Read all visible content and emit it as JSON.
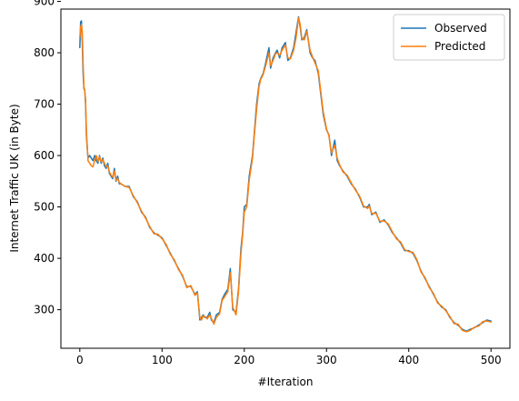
{
  "chart_data": {
    "type": "line",
    "title": "",
    "xlabel": "#Iteration",
    "ylabel": "Internet Traffic UK (in Byte)",
    "xlim": [
      -23,
      523
    ],
    "ylim": [
      225,
      885
    ],
    "xticks": [
      0,
      100,
      200,
      300,
      400,
      500
    ],
    "yticks": [
      300,
      400,
      500,
      600,
      700,
      800,
      900
    ],
    "grid": false,
    "legend_position": "top-right",
    "series": [
      {
        "name": "Observed",
        "color": "#1f77b4",
        "x": [
          0,
          1,
          2,
          3,
          4,
          5,
          6,
          7,
          8,
          9,
          10,
          12,
          14,
          16,
          18,
          20,
          22,
          24,
          26,
          28,
          30,
          32,
          34,
          36,
          38,
          40,
          42,
          44,
          46,
          48,
          50,
          55,
          60,
          65,
          70,
          75,
          80,
          85,
          90,
          95,
          100,
          105,
          110,
          115,
          120,
          125,
          130,
          135,
          140,
          143,
          146,
          148,
          150,
          152,
          155,
          158,
          160,
          163,
          166,
          170,
          173,
          176,
          180,
          183,
          186,
          190,
          193,
          196,
          198,
          200,
          203,
          206,
          210,
          212,
          215,
          218,
          220,
          223,
          226,
          230,
          232,
          235,
          238,
          240,
          243,
          246,
          250,
          253,
          256,
          260,
          263,
          266,
          268,
          270,
          273,
          276,
          280,
          283,
          286,
          290,
          293,
          296,
          300,
          303,
          306,
          310,
          313,
          316,
          320,
          325,
          330,
          335,
          340,
          345,
          350,
          352,
          355,
          360,
          365,
          370,
          375,
          380,
          385,
          390,
          395,
          400,
          405,
          410,
          415,
          420,
          425,
          430,
          435,
          440,
          445,
          450,
          455,
          460,
          465,
          470,
          475,
          480,
          485,
          490,
          495,
          500
        ],
        "y": [
          810,
          860,
          862,
          820,
          760,
          730,
          728,
          700,
          640,
          615,
          595,
          600,
          595,
          590,
          600,
          590,
          585,
          600,
          585,
          595,
          580,
          575,
          585,
          565,
          560,
          555,
          575,
          550,
          560,
          545,
          545,
          540,
          540,
          520,
          510,
          490,
          480,
          460,
          450,
          445,
          440,
          425,
          410,
          395,
          380,
          365,
          345,
          345,
          330,
          335,
          280,
          285,
          290,
          285,
          285,
          295,
          280,
          275,
          290,
          295,
          320,
          330,
          340,
          380,
          300,
          295,
          340,
          420,
          450,
          500,
          505,
          560,
          600,
          640,
          700,
          740,
          750,
          760,
          780,
          810,
          770,
          790,
          800,
          805,
          790,
          810,
          820,
          785,
          790,
          810,
          840,
          870,
          850,
          825,
          830,
          845,
          800,
          790,
          785,
          760,
          720,
          680,
          650,
          640,
          600,
          630,
          590,
          580,
          570,
          560,
          545,
          535,
          520,
          500,
          500,
          505,
          485,
          490,
          470,
          475,
          465,
          450,
          440,
          430,
          415,
          415,
          410,
          395,
          375,
          360,
          345,
          330,
          315,
          305,
          300,
          285,
          275,
          270,
          262,
          258,
          262,
          265,
          270,
          275,
          280,
          278
        ]
      },
      {
        "name": "Predicted",
        "color": "#ff7f0e",
        "x": [
          0,
          1,
          2,
          3,
          4,
          5,
          6,
          7,
          8,
          9,
          10,
          12,
          14,
          16,
          18,
          20,
          22,
          24,
          26,
          28,
          30,
          32,
          34,
          36,
          38,
          40,
          42,
          44,
          46,
          48,
          50,
          55,
          60,
          65,
          70,
          75,
          80,
          85,
          90,
          95,
          100,
          105,
          110,
          115,
          120,
          125,
          130,
          135,
          140,
          143,
          146,
          148,
          150,
          152,
          155,
          158,
          160,
          163,
          166,
          170,
          173,
          176,
          180,
          183,
          186,
          190,
          193,
          196,
          198,
          200,
          203,
          206,
          210,
          212,
          215,
          218,
          220,
          223,
          226,
          230,
          232,
          235,
          238,
          240,
          243,
          246,
          250,
          253,
          256,
          260,
          263,
          266,
          268,
          270,
          273,
          276,
          280,
          283,
          286,
          290,
          293,
          296,
          300,
          303,
          306,
          310,
          313,
          316,
          320,
          325,
          330,
          335,
          340,
          345,
          350,
          352,
          355,
          360,
          365,
          370,
          375,
          380,
          385,
          390,
          395,
          400,
          405,
          410,
          415,
          420,
          425,
          430,
          435,
          440,
          445,
          450,
          455,
          460,
          465,
          470,
          475,
          480,
          485,
          490,
          495,
          500
        ],
        "y": [
          830,
          850,
          855,
          840,
          780,
          735,
          725,
          710,
          650,
          620,
          590,
          585,
          580,
          578,
          590,
          600,
          588,
          598,
          588,
          592,
          585,
          578,
          580,
          568,
          562,
          558,
          570,
          552,
          555,
          548,
          545,
          540,
          538,
          522,
          508,
          492,
          478,
          462,
          448,
          447,
          438,
          427,
          408,
          397,
          378,
          367,
          343,
          347,
          328,
          333,
          285,
          280,
          288,
          287,
          282,
          290,
          283,
          272,
          285,
          292,
          318,
          325,
          335,
          372,
          305,
          290,
          335,
          410,
          445,
          490,
          500,
          552,
          595,
          635,
          690,
          735,
          748,
          758,
          775,
          800,
          775,
          785,
          798,
          800,
          795,
          805,
          815,
          790,
          788,
          805,
          830,
          868,
          855,
          828,
          825,
          842,
          805,
          792,
          780,
          765,
          725,
          685,
          652,
          638,
          605,
          620,
          595,
          582,
          568,
          562,
          547,
          533,
          522,
          502,
          497,
          502,
          487,
          488,
          472,
          473,
          467,
          452,
          438,
          432,
          417,
          413,
          412,
          397,
          373,
          362,
          343,
          332,
          313,
          307,
          298,
          287,
          273,
          272,
          260,
          257,
          260,
          266,
          268,
          277,
          278,
          276
        ]
      }
    ]
  }
}
